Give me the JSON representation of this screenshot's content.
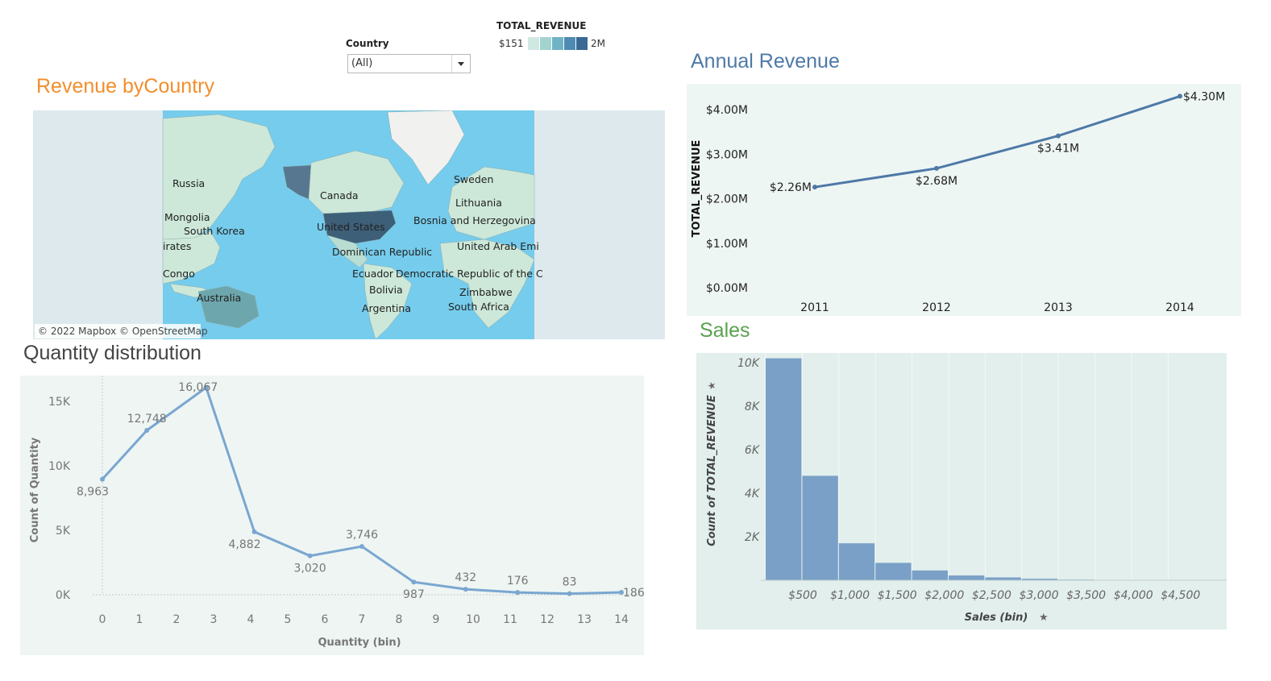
{
  "filter": {
    "label": "Country",
    "value": "(All)"
  },
  "color_legend": {
    "title": "TOTAL_REVENUE",
    "min_label": "$151",
    "max_label": "2M",
    "swatches": [
      "#cfe9e2",
      "#a3d3cf",
      "#6fb4c6",
      "#4e8bb2",
      "#3b6996"
    ]
  },
  "map_panel": {
    "title": "Revenue byCountry",
    "attribution": "© 2022 Mapbox © OpenStreetMap",
    "labels": [
      "Russia",
      "Canada",
      "Sweden",
      "Lithuania",
      "Mongolia",
      "Bosnia and Herzegovina",
      "South Korea",
      "United States",
      "irates",
      "United Arab Emi",
      "Dominican Republic",
      "Congo",
      "Ecuador",
      "Democratic Republic of the C",
      "Bolivia",
      "Zimbabwe",
      "Australia",
      "South Africa",
      "Argentina"
    ]
  },
  "annual_revenue": {
    "title": "Annual Revenue",
    "chart_data": {
      "type": "line",
      "x": [
        "2011",
        "2012",
        "2013",
        "2014"
      ],
      "values": [
        2.26,
        2.68,
        3.41,
        4.3
      ],
      "data_labels": [
        "$2.26M",
        "$2.68M",
        "$3.41M",
        "$4.30M"
      ],
      "ylabel": "TOTAL_REVENUE",
      "y_ticks": [
        "$0.00M",
        "$1.00M",
        "$2.00M",
        "$3.00M",
        "$4.00M"
      ],
      "ylim": [
        0,
        4.3
      ],
      "color": "#4e79a7"
    }
  },
  "quantity": {
    "title": "Quantity distribution",
    "chart_data": {
      "type": "line",
      "x_ticks": [
        "0",
        "1",
        "2",
        "3",
        "4",
        "5",
        "6",
        "7",
        "8",
        "9",
        "10",
        "11",
        "12",
        "13",
        "14"
      ],
      "x": [
        0,
        1.2,
        2.8,
        4.1,
        5.6,
        7,
        8.4,
        9.8,
        11.2,
        12.6,
        14
      ],
      "values": [
        8963,
        12748,
        16067,
        4882,
        3020,
        3746,
        987,
        432,
        176,
        83,
        186
      ],
      "data_labels": [
        "8,963",
        "12,748",
        "16,067",
        "4,882",
        "3,020",
        "3,746",
        "987",
        "432",
        "176",
        "83",
        "186"
      ],
      "xlabel": "Quantity (bin)",
      "ylabel": "Count of Quantity",
      "y_ticks": [
        "0K",
        "5K",
        "10K",
        "15K"
      ],
      "ylim": [
        0,
        16500
      ],
      "color": "#7aa6d0"
    }
  },
  "sales": {
    "title": "Sales",
    "chart_data": {
      "type": "bar",
      "bins": [
        "$0-$250",
        "$250-$500",
        "$500-$750",
        "$750-$1,000",
        "$1,000-$1,250",
        "$1,250-$1,500",
        "$1,500-$1,750",
        "$1,750-$2,000",
        "$2,000-$2,250"
      ],
      "values": [
        10200,
        4800,
        1700,
        800,
        450,
        220,
        130,
        70,
        30
      ],
      "x_ticks": [
        "$500",
        "$1,000",
        "$1,500",
        "$2,000",
        "$2,500",
        "$3,000",
        "$3,500",
        "$4,000",
        "$4,500"
      ],
      "xlabel": "Sales (bin)",
      "ylabel": "Count of TOTAL_REVENUE",
      "y_ticks": [
        "2K",
        "4K",
        "6K",
        "8K",
        "10K"
      ],
      "ylim": [
        0,
        10000
      ],
      "color": "#7aa0c7"
    }
  }
}
